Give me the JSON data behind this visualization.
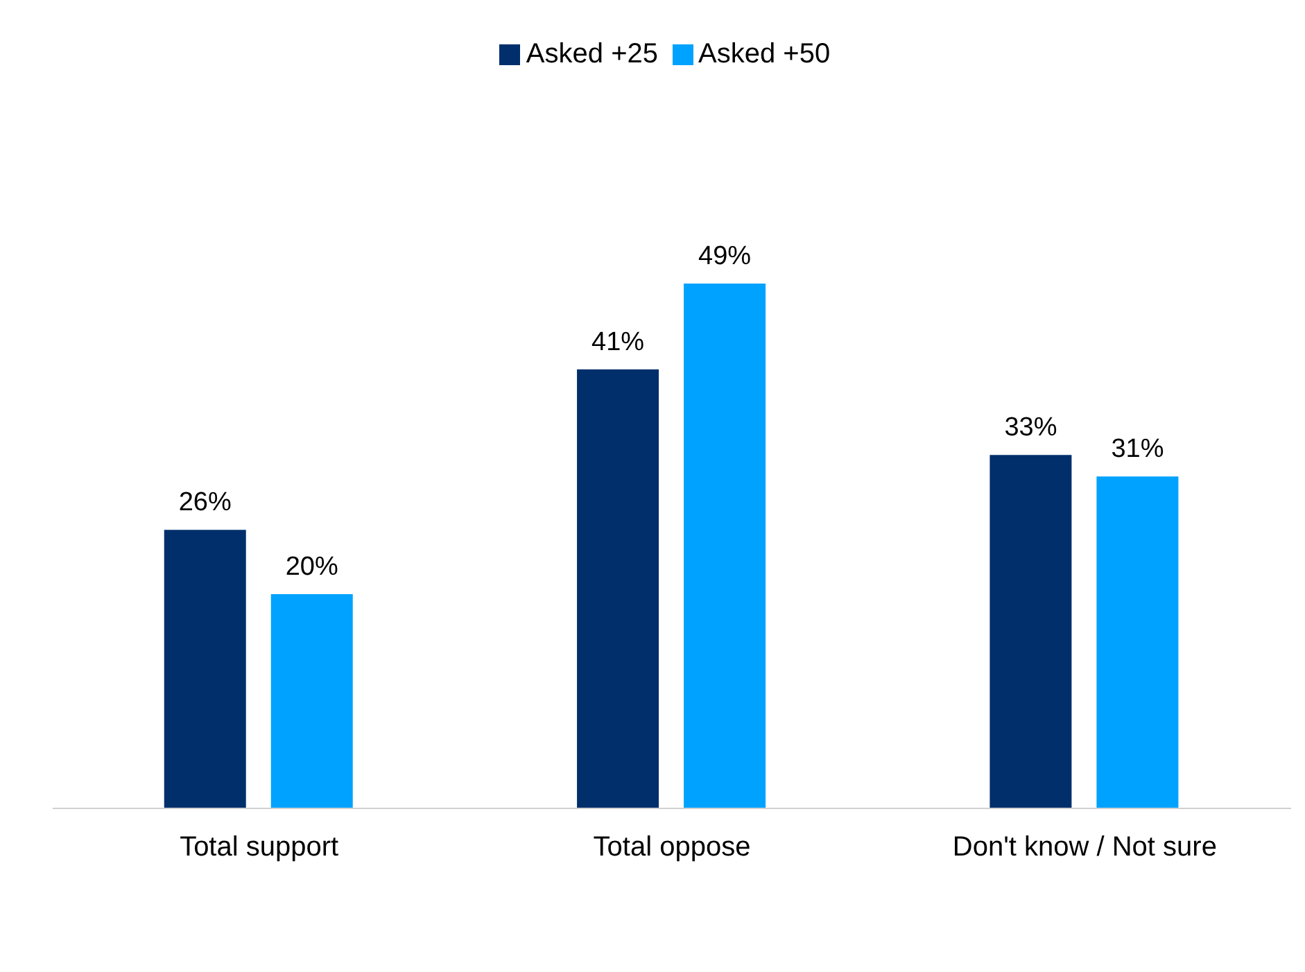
{
  "chart_data": {
    "type": "bar",
    "categories": [
      "Total support",
      "Total oppose",
      "Don't know / Not sure"
    ],
    "series": [
      {
        "name": "Asked +25",
        "color": "#002f6c",
        "values": [
          26,
          41,
          33
        ],
        "value_labels": [
          "26%",
          "41%",
          "33%"
        ]
      },
      {
        "name": "Asked +50",
        "color": "#00a2ff",
        "values": [
          20,
          49,
          31
        ],
        "value_labels": [
          "20%",
          "49%",
          "31%"
        ]
      }
    ],
    "legend": "top"
  }
}
